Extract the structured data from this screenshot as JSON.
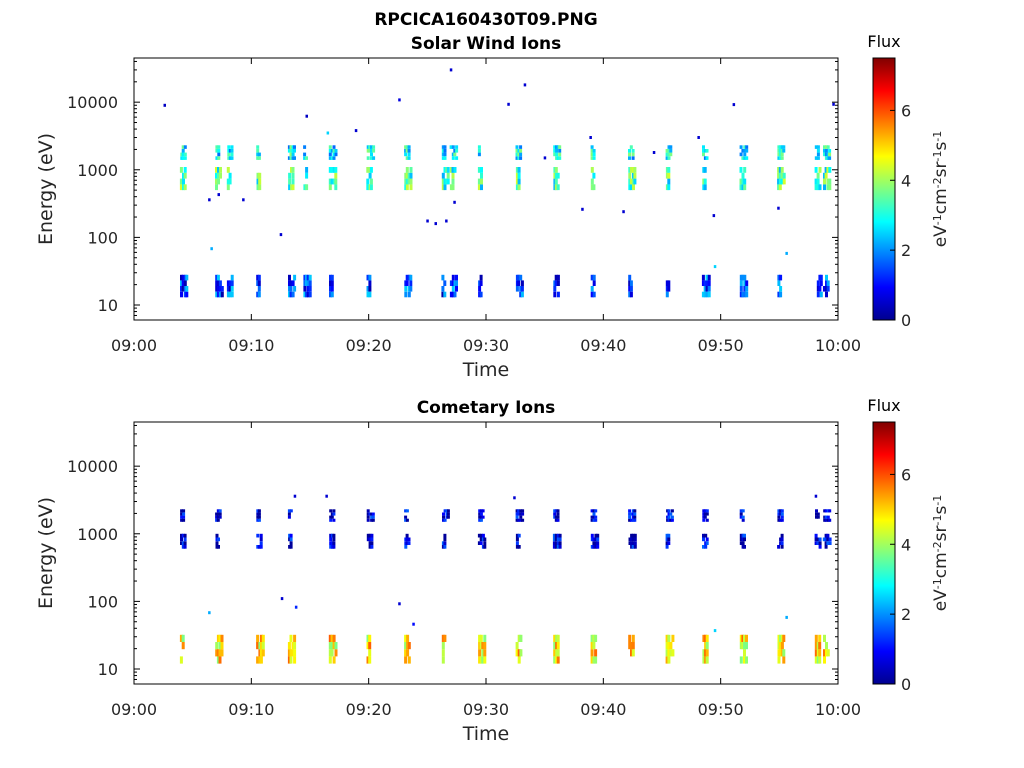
{
  "figure": {
    "title": "RPCICA160430T09.PNG"
  },
  "colorbar": {
    "label": "Flux",
    "unit_base": "eV",
    "unit_parts": [
      "eV",
      "-1",
      "cm",
      "-2",
      "sr",
      "-1",
      "s",
      "-1"
    ],
    "ticks": [
      "0",
      "2",
      "4",
      "6"
    ],
    "range": [
      0,
      7.5
    ],
    "colormap": "jet"
  },
  "chart_data": [
    {
      "type": "heatmap",
      "title": "Solar Wind Ions",
      "xlabel": "Time",
      "ylabel": "Energy (eV)",
      "x_tick_labels": [
        "09:00",
        "09:10",
        "09:20",
        "09:30",
        "09:40",
        "09:50",
        "10:00"
      ],
      "xlim_minutes": [
        0,
        60
      ],
      "y_scale": "log",
      "ylim": [
        6,
        45000
      ],
      "y_tick_labels": [
        "10",
        "100",
        "1000",
        "10000"
      ],
      "clim": [
        0,
        7.5
      ],
      "bursts_minutes": [
        4.0,
        7.0,
        8.0,
        10.5,
        13.2,
        14.5,
        16.7,
        19.9,
        23.1,
        26.3,
        27.0,
        29.4,
        32.6,
        35.8,
        39.0,
        42.2,
        45.4,
        48.5,
        51.7,
        54.9,
        58.1,
        58.8
      ],
      "bands": [
        {
          "energy_range": [
            500,
            1100
          ],
          "flux": 3.3
        },
        {
          "energy_range": [
            1400,
            2300
          ],
          "flux": 2.8
        },
        {
          "energy_range": [
            13,
            28
          ],
          "flux": 1.4
        }
      ],
      "scatter": [
        {
          "t": 2.6,
          "e": 9000,
          "v": 0.5
        },
        {
          "t": 14.7,
          "e": 6200,
          "v": 0.5
        },
        {
          "t": 16.5,
          "e": 3500,
          "v": 2.5
        },
        {
          "t": 18.9,
          "e": 3800,
          "v": 0.6
        },
        {
          "t": 22.6,
          "e": 10800,
          "v": 0.7
        },
        {
          "t": 27.0,
          "e": 30000,
          "v": 0.6
        },
        {
          "t": 33.3,
          "e": 18000,
          "v": 0.6
        },
        {
          "t": 31.9,
          "e": 9300,
          "v": 0.6
        },
        {
          "t": 51.1,
          "e": 9200,
          "v": 0.6
        },
        {
          "t": 59.6,
          "e": 9300,
          "v": 0.6
        },
        {
          "t": 6.4,
          "e": 360,
          "v": 0.6
        },
        {
          "t": 7.2,
          "e": 430,
          "v": 0.6
        },
        {
          "t": 9.3,
          "e": 360,
          "v": 0.6
        },
        {
          "t": 12.5,
          "e": 110,
          "v": 0.6
        },
        {
          "t": 25.0,
          "e": 175,
          "v": 0.6
        },
        {
          "t": 25.7,
          "e": 160,
          "v": 0.6
        },
        {
          "t": 26.6,
          "e": 175,
          "v": 0.6
        },
        {
          "t": 27.3,
          "e": 330,
          "v": 0.6
        },
        {
          "t": 38.2,
          "e": 260,
          "v": 0.6
        },
        {
          "t": 41.7,
          "e": 240,
          "v": 0.6
        },
        {
          "t": 49.4,
          "e": 210,
          "v": 0.6
        },
        {
          "t": 54.9,
          "e": 270,
          "v": 0.6
        },
        {
          "t": 6.6,
          "e": 68,
          "v": 2.2
        },
        {
          "t": 55.6,
          "e": 58,
          "v": 2.2
        },
        {
          "t": 49.5,
          "e": 37,
          "v": 2.5
        },
        {
          "t": 35.0,
          "e": 1500,
          "v": 0.6
        },
        {
          "t": 44.3,
          "e": 1800,
          "v": 0.6
        },
        {
          "t": 38.9,
          "e": 3000,
          "v": 0.6
        },
        {
          "t": 48.1,
          "e": 3000,
          "v": 0.6
        }
      ]
    },
    {
      "type": "heatmap",
      "title": "Cometary Ions",
      "xlabel": "Time",
      "ylabel": "Energy (eV)",
      "x_tick_labels": [
        "09:00",
        "09:10",
        "09:20",
        "09:30",
        "09:40",
        "09:50",
        "10:00"
      ],
      "xlim_minutes": [
        0,
        60
      ],
      "y_scale": "log",
      "ylim": [
        6,
        45000
      ],
      "y_tick_labels": [
        "10",
        "100",
        "1000",
        "10000"
      ],
      "clim": [
        0,
        7.5
      ],
      "bursts_minutes": [
        4.0,
        7.0,
        10.5,
        13.2,
        16.7,
        19.9,
        23.1,
        26.3,
        29.4,
        32.6,
        35.8,
        39.0,
        42.2,
        45.4,
        48.5,
        51.7,
        54.9,
        58.1,
        58.8
      ],
      "bands": [
        {
          "energy_range": [
            12,
            32
          ],
          "flux": 4.8
        },
        {
          "energy_range": [
            600,
            1000
          ],
          "flux": 0.6
        },
        {
          "energy_range": [
            1500,
            2300
          ],
          "flux": 0.6
        }
      ],
      "scatter": [
        {
          "t": 12.6,
          "e": 110,
          "v": 0.6
        },
        {
          "t": 13.8,
          "e": 82,
          "v": 1.2
        },
        {
          "t": 22.6,
          "e": 92,
          "v": 0.6
        },
        {
          "t": 23.8,
          "e": 46,
          "v": 1.0
        },
        {
          "t": 6.4,
          "e": 68,
          "v": 2.2
        },
        {
          "t": 55.6,
          "e": 58,
          "v": 2.2
        },
        {
          "t": 49.5,
          "e": 37,
          "v": 2.5
        },
        {
          "t": 13.7,
          "e": 3600,
          "v": 0.6
        },
        {
          "t": 16.4,
          "e": 3600,
          "v": 0.6
        },
        {
          "t": 32.4,
          "e": 3400,
          "v": 0.6
        },
        {
          "t": 58.1,
          "e": 3600,
          "v": 0.6
        }
      ]
    }
  ]
}
